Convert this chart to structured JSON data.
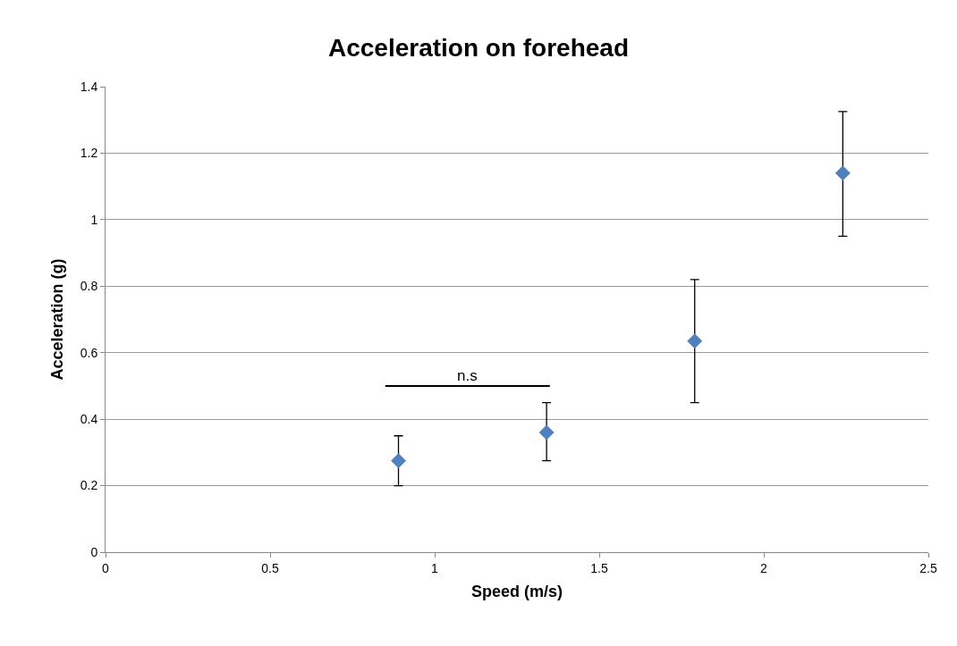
{
  "chart_data": {
    "type": "scatter",
    "title": "Acceleration on forehead",
    "xlabel": "Speed (m/s)",
    "ylabel": "Acceleration (g)",
    "x": [
      0.89,
      1.34,
      1.79,
      2.24
    ],
    "series": [
      {
        "color": "#4f81bd",
        "values": [
          0.275,
          0.36,
          0.635,
          1.14
        ],
        "errors": [
          [
            0.2,
            0.35
          ],
          [
            0.275,
            0.45
          ],
          [
            0.45,
            0.82
          ],
          [
            0.95,
            1.325
          ]
        ]
      }
    ],
    "xlim": [
      0,
      2.5
    ],
    "xticks": [
      0,
      0.5,
      1,
      1.5,
      2,
      2.5
    ],
    "ylim": [
      0,
      1.4
    ],
    "yticks": [
      0,
      0.2,
      0.4,
      0.6,
      0.8,
      1,
      1.2,
      1.4
    ],
    "grid": "y",
    "marker": "diamond",
    "annotations": [
      "n.s"
    ]
  }
}
